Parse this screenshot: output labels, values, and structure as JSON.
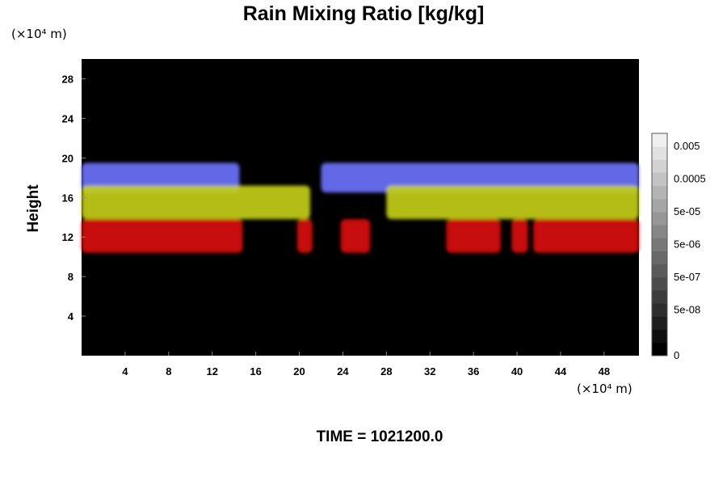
{
  "chart_data": {
    "type": "heatmap",
    "title": "Rain Mixing Ratio [kg/kg]",
    "ylabel": "Height",
    "y_unit": "(×10⁴ m)",
    "x_unit": "(×10⁴ m)",
    "footer": "TIME = 1021200.0",
    "xlim": [
      0,
      51.2
    ],
    "ylim": [
      0,
      30
    ],
    "x_ticks": [
      4,
      8,
      12,
      16,
      20,
      24,
      28,
      32,
      36,
      40,
      44,
      48
    ],
    "y_ticks": [
      4,
      8,
      12,
      16,
      20,
      24,
      28
    ],
    "background_color": "#000000",
    "colorbar": {
      "labels": [
        "0.005",
        "0.0005",
        "5e-05",
        "5e-06",
        "5e-07",
        "5e-08",
        "0"
      ],
      "levels": 17,
      "color_low": "#000000",
      "color_high": "#f0f0f0"
    },
    "layers": [
      {
        "name": "upper",
        "color": "#6f74ff",
        "y_min": 16.5,
        "y_max": 19.5,
        "segments": [
          [
            0,
            14.5
          ],
          [
            22,
            51.2
          ]
        ]
      },
      {
        "name": "middle",
        "color": "#c7d118",
        "y_min": 13.8,
        "y_max": 17.2,
        "segments": [
          [
            0,
            21
          ],
          [
            28,
            51.2
          ]
        ]
      },
      {
        "name": "lower",
        "color": "#dd1111",
        "y_min": 10.4,
        "y_max": 13.8,
        "segments": [
          [
            0,
            14.8
          ],
          [
            19.8,
            21.2
          ],
          [
            23.8,
            26.5
          ],
          [
            33.5,
            38.5
          ],
          [
            39.5,
            41
          ],
          [
            41.5,
            51.2
          ]
        ]
      }
    ]
  }
}
